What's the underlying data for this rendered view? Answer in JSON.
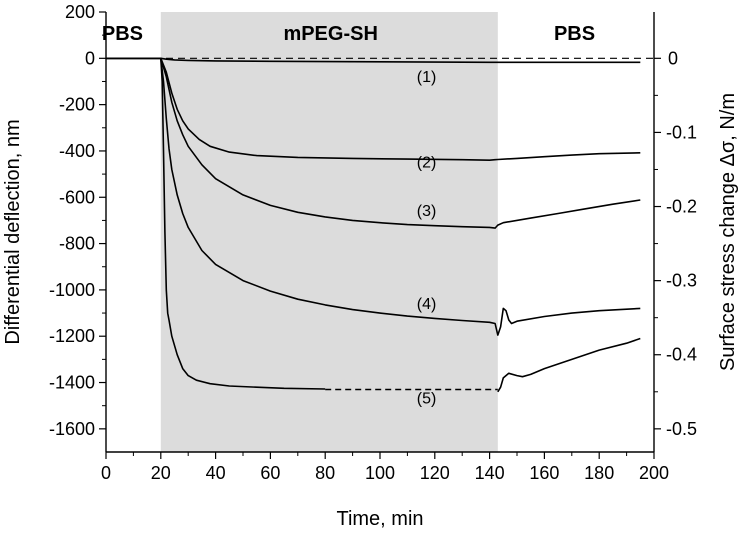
{
  "chart_data": {
    "type": "line",
    "xlabel": "Time, min",
    "ylabel": "Differential deflection, nm",
    "y2label": "Surface stress change Δσ, N/m",
    "xlim": [
      0,
      200
    ],
    "ylim": [
      -1700,
      200
    ],
    "y2lim": [
      -0.5,
      0
    ],
    "x_ticks": [
      0,
      20,
      40,
      60,
      80,
      100,
      120,
      140,
      160,
      180,
      200
    ],
    "y_ticks": [
      200,
      0,
      -200,
      -400,
      -600,
      -800,
      -1000,
      -1200,
      -1400,
      -1600
    ],
    "y2_ticks": [
      {
        "value": 0,
        "label": "0"
      },
      {
        "value": -0.1,
        "label": "-0.1"
      },
      {
        "value": -0.2,
        "label": "-0.2"
      },
      {
        "value": -0.3,
        "label": "-0.3"
      },
      {
        "value": -0.4,
        "label": "-0.4"
      },
      {
        "value": -0.5,
        "label": "-0.5"
      }
    ],
    "y2_at_zero_nm": 0,
    "y2_at_minus1600nm": -0.5,
    "shaded_region": {
      "x_start": 20,
      "x_end": 143,
      "color": "#dcdcdc"
    },
    "region_labels": [
      {
        "text": "PBS",
        "x": 6
      },
      {
        "text": "mPEG-SH",
        "x": 82
      },
      {
        "text": "PBS",
        "x": 171
      }
    ],
    "reference_line": {
      "y": 0,
      "style": "dashed"
    },
    "series": [
      {
        "label": "(1)",
        "label_pos": [
          117,
          -80
        ],
        "points": [
          [
            0,
            0
          ],
          [
            20,
            0
          ],
          [
            22,
            -4
          ],
          [
            25,
            -7
          ],
          [
            30,
            -9
          ],
          [
            40,
            -11
          ],
          [
            60,
            -13
          ],
          [
            100,
            -15
          ],
          [
            140,
            -17
          ],
          [
            160,
            -17
          ],
          [
            195,
            -17
          ]
        ]
      },
      {
        "label": "(2)",
        "label_pos": [
          117,
          -450
        ],
        "points": [
          [
            0,
            0
          ],
          [
            20,
            0
          ],
          [
            22,
            -60
          ],
          [
            24,
            -150
          ],
          [
            26,
            -220
          ],
          [
            28,
            -270
          ],
          [
            30,
            -305
          ],
          [
            34,
            -350
          ],
          [
            38,
            -380
          ],
          [
            45,
            -405
          ],
          [
            55,
            -420
          ],
          [
            70,
            -428
          ],
          [
            90,
            -432
          ],
          [
            110,
            -435
          ],
          [
            130,
            -438
          ],
          [
            140,
            -440
          ],
          [
            142,
            -438
          ],
          [
            143,
            -437
          ],
          [
            150,
            -432
          ],
          [
            160,
            -425
          ],
          [
            170,
            -418
          ],
          [
            180,
            -412
          ],
          [
            195,
            -408
          ]
        ]
      },
      {
        "label": "(3)",
        "label_pos": [
          117,
          -660
        ],
        "points": [
          [
            0,
            0
          ],
          [
            20,
            0
          ],
          [
            22,
            -80
          ],
          [
            24,
            -190
          ],
          [
            26,
            -270
          ],
          [
            28,
            -330
          ],
          [
            30,
            -380
          ],
          [
            35,
            -460
          ],
          [
            40,
            -520
          ],
          [
            50,
            -590
          ],
          [
            60,
            -635
          ],
          [
            70,
            -665
          ],
          [
            80,
            -685
          ],
          [
            90,
            -700
          ],
          [
            100,
            -710
          ],
          [
            110,
            -718
          ],
          [
            120,
            -723
          ],
          [
            130,
            -727
          ],
          [
            140,
            -730
          ],
          [
            142,
            -733
          ],
          [
            143,
            -720
          ],
          [
            145,
            -710
          ],
          [
            155,
            -690
          ],
          [
            165,
            -670
          ],
          [
            175,
            -650
          ],
          [
            185,
            -630
          ],
          [
            195,
            -612
          ]
        ]
      },
      {
        "label": "(4)",
        "label_pos": [
          117,
          -1060
        ],
        "points": [
          [
            0,
            0
          ],
          [
            20,
            0
          ],
          [
            21,
            -100
          ],
          [
            22,
            -260
          ],
          [
            23,
            -390
          ],
          [
            24,
            -480
          ],
          [
            26,
            -590
          ],
          [
            28,
            -670
          ],
          [
            30,
            -730
          ],
          [
            35,
            -830
          ],
          [
            40,
            -890
          ],
          [
            50,
            -960
          ],
          [
            60,
            -1005
          ],
          [
            70,
            -1040
          ],
          [
            80,
            -1065
          ],
          [
            90,
            -1085
          ],
          [
            100,
            -1100
          ],
          [
            110,
            -1113
          ],
          [
            120,
            -1123
          ],
          [
            130,
            -1132
          ],
          [
            140,
            -1140
          ],
          [
            142,
            -1145
          ],
          [
            143,
            -1195
          ],
          [
            144,
            -1160
          ],
          [
            145,
            -1080
          ],
          [
            146,
            -1090
          ],
          [
            147,
            -1130
          ],
          [
            148,
            -1145
          ],
          [
            150,
            -1135
          ],
          [
            160,
            -1115
          ],
          [
            170,
            -1100
          ],
          [
            180,
            -1090
          ],
          [
            195,
            -1080
          ]
        ]
      },
      {
        "label": "(5)",
        "label_pos": [
          117,
          -1470
        ],
        "points": [
          [
            0,
            0
          ],
          [
            20,
            0
          ],
          [
            20.5,
            -100
          ],
          [
            21,
            -400
          ],
          [
            21.5,
            -750
          ],
          [
            22,
            -1000
          ],
          [
            22.5,
            -1100
          ],
          [
            23,
            -1130
          ],
          [
            24,
            -1200
          ],
          [
            26,
            -1280
          ],
          [
            28,
            -1340
          ],
          [
            30,
            -1370
          ],
          [
            33,
            -1390
          ],
          [
            38,
            -1405
          ],
          [
            45,
            -1415
          ],
          [
            55,
            -1420
          ],
          [
            65,
            -1425
          ],
          [
            80,
            -1428
          ]
        ],
        "dashed_segment": [
          [
            80,
            -1430
          ],
          [
            143,
            -1430
          ]
        ],
        "recovery": [
          [
            143,
            -1440
          ],
          [
            144,
            -1420
          ],
          [
            145,
            -1380
          ],
          [
            147,
            -1360
          ],
          [
            150,
            -1370
          ],
          [
            152,
            -1375
          ],
          [
            155,
            -1365
          ],
          [
            160,
            -1340
          ],
          [
            170,
            -1300
          ],
          [
            180,
            -1260
          ],
          [
            190,
            -1230
          ],
          [
            195,
            -1210
          ]
        ]
      }
    ]
  }
}
